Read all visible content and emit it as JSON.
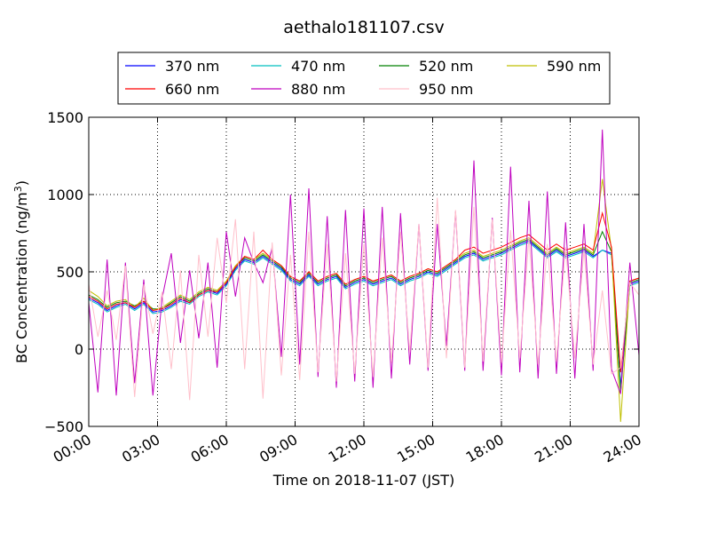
{
  "chart_data": {
    "type": "line",
    "title": "aethalo181107.csv",
    "xlabel": "Time on 2018-11-07 (JST)",
    "ylabel": "BC Concentration (ng/m³)",
    "ylabel_main": "BC Concentration (ng/m",
    "ylabel_sup": "3",
    "ylabel_close": ")",
    "xlim": [
      0,
      24
    ],
    "ylim": [
      -500,
      1500
    ],
    "grid": true,
    "legend_placement": "top, above plot",
    "x_ticks": [
      "00:00",
      "03:00",
      "06:00",
      "09:00",
      "12:00",
      "15:00",
      "18:00",
      "21:00",
      "24:00"
    ],
    "y_ticks": [
      "1500",
      "1000",
      "500",
      "0",
      "−500"
    ],
    "y_tick_values": [
      1500,
      1000,
      500,
      0,
      -500
    ],
    "x": [
      0,
      0.4,
      0.8,
      1.2,
      1.6,
      2,
      2.4,
      2.8,
      3.2,
      3.6,
      4,
      4.4,
      4.8,
      5.2,
      5.6,
      6,
      6.4,
      6.8,
      7.2,
      7.6,
      8,
      8.4,
      8.8,
      9.2,
      9.6,
      10,
      10.4,
      10.8,
      11.2,
      11.6,
      12,
      12.4,
      12.8,
      13.2,
      13.6,
      14,
      14.4,
      14.8,
      15.2,
      15.6,
      16,
      16.4,
      16.8,
      17.2,
      17.6,
      18,
      18.4,
      18.8,
      19.2,
      19.6,
      20,
      20.4,
      20.8,
      21.2,
      21.6,
      22,
      22.4,
      22.8,
      23.2,
      23.6,
      24
    ],
    "series": [
      {
        "name": "370 nm",
        "color": "#0000ff",
        "values": [
          330,
          300,
          250,
          280,
          300,
          260,
          300,
          240,
          250,
          280,
          320,
          300,
          350,
          380,
          360,
          420,
          520,
          580,
          560,
          600,
          560,
          520,
          450,
          420,
          480,
          420,
          450,
          470,
          400,
          430,
          450,
          420,
          440,
          460,
          420,
          450,
          470,
          500,
          480,
          520,
          560,
          600,
          620,
          580,
          600,
          620,
          650,
          680,
          700,
          650,
          600,
          640,
          600,
          620,
          640,
          600,
          640,
          620,
          -240,
          420,
          440
        ]
      },
      {
        "name": "470 nm",
        "color": "#00bfbf",
        "values": [
          320,
          290,
          240,
          270,
          290,
          250,
          290,
          230,
          240,
          270,
          310,
          290,
          340,
          370,
          350,
          410,
          510,
          570,
          550,
          590,
          550,
          510,
          440,
          410,
          470,
          410,
          440,
          460,
          390,
          420,
          440,
          410,
          430,
          450,
          410,
          440,
          460,
          490,
          470,
          510,
          550,
          590,
          610,
          570,
          590,
          610,
          640,
          670,
          690,
          640,
          590,
          630,
          590,
          610,
          630,
          590,
          640,
          610,
          -260,
          410,
          430
        ]
      },
      {
        "name": "520 nm",
        "color": "#008000",
        "values": [
          350,
          320,
          270,
          300,
          310,
          280,
          310,
          260,
          260,
          300,
          340,
          310,
          360,
          390,
          370,
          430,
          530,
          590,
          570,
          610,
          570,
          530,
          460,
          430,
          490,
          430,
          460,
          480,
          410,
          440,
          460,
          430,
          450,
          470,
          430,
          460,
          480,
          510,
          490,
          530,
          570,
          610,
          630,
          590,
          610,
          630,
          660,
          690,
          710,
          660,
          610,
          650,
          610,
          630,
          650,
          610,
          760,
          630,
          -280,
          430,
          450
        ]
      },
      {
        "name": "590 nm",
        "color": "#bfbf00",
        "values": [
          380,
          340,
          280,
          310,
          320,
          270,
          330,
          250,
          270,
          310,
          350,
          320,
          370,
          400,
          380,
          440,
          540,
          600,
          580,
          620,
          580,
          540,
          470,
          440,
          500,
          440,
          470,
          490,
          420,
          450,
          470,
          440,
          460,
          480,
          440,
          470,
          490,
          520,
          500,
          540,
          580,
          620,
          640,
          600,
          620,
          640,
          670,
          700,
          720,
          670,
          620,
          660,
          620,
          640,
          660,
          620,
          1100,
          640,
          -470,
          440,
          460
        ]
      },
      {
        "name": "660 nm",
        "color": "#ff0000",
        "values": [
          340,
          310,
          260,
          290,
          300,
          270,
          310,
          250,
          260,
          290,
          330,
          300,
          350,
          380,
          370,
          430,
          530,
          600,
          580,
          640,
          580,
          540,
          470,
          440,
          500,
          440,
          470,
          490,
          420,
          450,
          470,
          440,
          460,
          480,
          440,
          470,
          490,
          520,
          500,
          540,
          580,
          640,
          660,
          620,
          640,
          660,
          690,
          720,
          740,
          690,
          640,
          680,
          640,
          660,
          680,
          640,
          880,
          660,
          -150,
          440,
          460
        ]
      },
      {
        "name": "880 nm",
        "color": "#bf00bf",
        "values": [
          300,
          -280,
          580,
          -300,
          560,
          -220,
          450,
          -300,
          330,
          620,
          40,
          510,
          70,
          560,
          -120,
          760,
          340,
          720,
          560,
          430,
          660,
          -50,
          1000,
          -100,
          1040,
          -180,
          860,
          -250,
          900,
          -210,
          910,
          -250,
          920,
          -190,
          880,
          -100,
          810,
          -140,
          810,
          20,
          890,
          -140,
          1220,
          -140,
          850,
          -170,
          1180,
          -150,
          960,
          -190,
          1020,
          -160,
          820,
          -190,
          810,
          -140,
          1420,
          -130,
          -290,
          560,
          -40
        ]
      },
      {
        "name": "950 nm",
        "color": "#ffc0cb",
        "values": [
          420,
          80,
          380,
          60,
          540,
          -310,
          420,
          100,
          370,
          -130,
          510,
          -330,
          610,
          80,
          720,
          300,
          840,
          -130,
          760,
          -320,
          690,
          -170,
          610,
          -200,
          760,
          -150,
          680,
          -210,
          620,
          -160,
          680,
          -180,
          720,
          -90,
          760,
          -20,
          810,
          -120,
          980,
          -60,
          900,
          -120,
          920,
          -80,
          840,
          -90,
          770,
          -60,
          720,
          -100,
          680,
          -80,
          660,
          -60,
          640,
          -100,
          380,
          -160,
          -120,
          430,
          350
        ]
      }
    ]
  }
}
